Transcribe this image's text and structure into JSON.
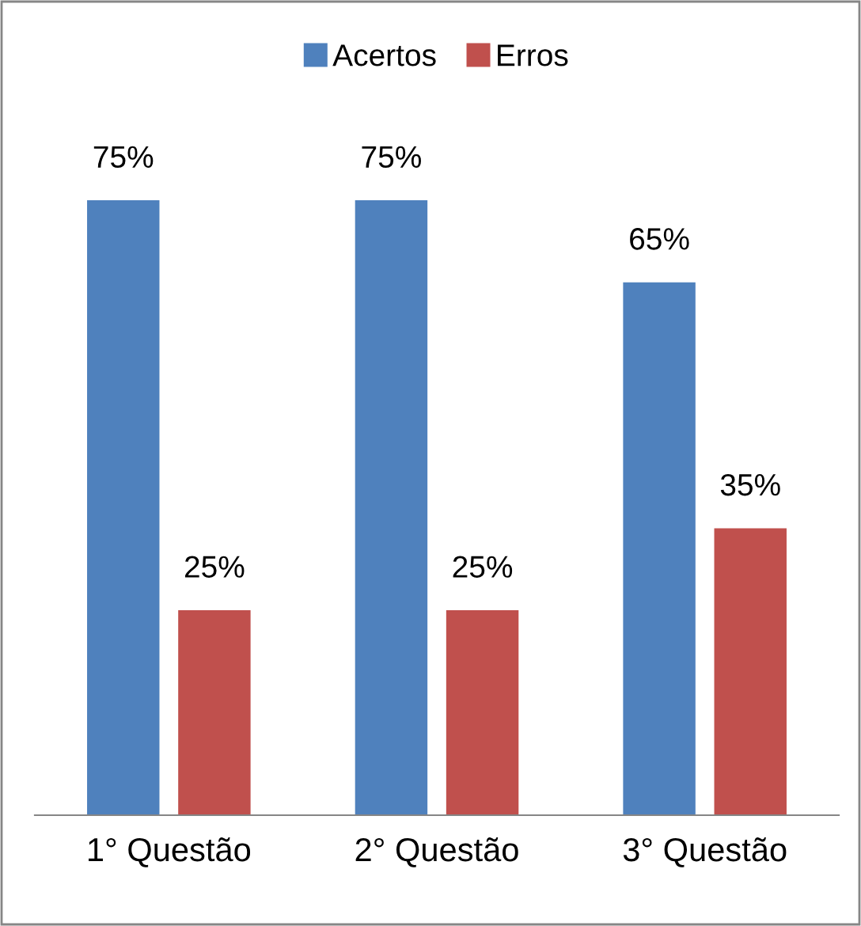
{
  "chart_data": {
    "type": "bar",
    "categories": [
      "1° Questão",
      "2° Questão",
      "3° Questão"
    ],
    "series": [
      {
        "name": "Acertos",
        "color": "#4f81bd",
        "values": [
          75,
          75,
          65
        ],
        "value_labels": [
          "75%",
          "75%",
          "65%"
        ]
      },
      {
        "name": "Erros",
        "color": "#c0504d",
        "values": [
          25,
          25,
          35
        ],
        "value_labels": [
          "25%",
          "25%",
          "35%"
        ]
      }
    ],
    "legend": "top",
    "grid": false
  }
}
